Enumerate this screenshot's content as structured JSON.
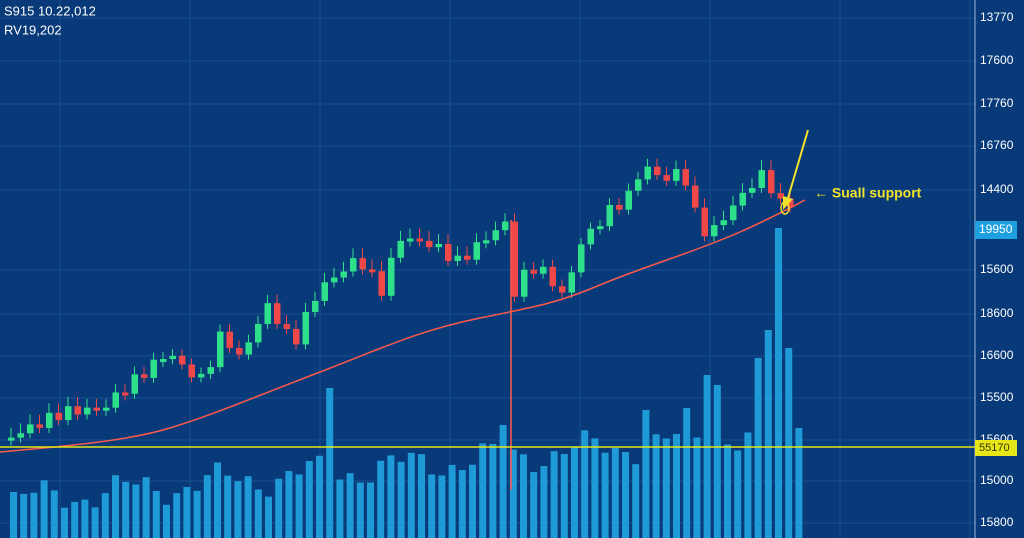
{
  "header": {
    "line1": "S915 10.22,012",
    "line2": "RV19,202"
  },
  "axis_labels": [
    "13770",
    "17600",
    "17760",
    "16760",
    "14400",
    "15600",
    "18600",
    "16600",
    "15500",
    "15600",
    "15000",
    "15800"
  ],
  "price_tags": {
    "last": "19950",
    "level": "55170"
  },
  "annotation": "← Suall support"
}
